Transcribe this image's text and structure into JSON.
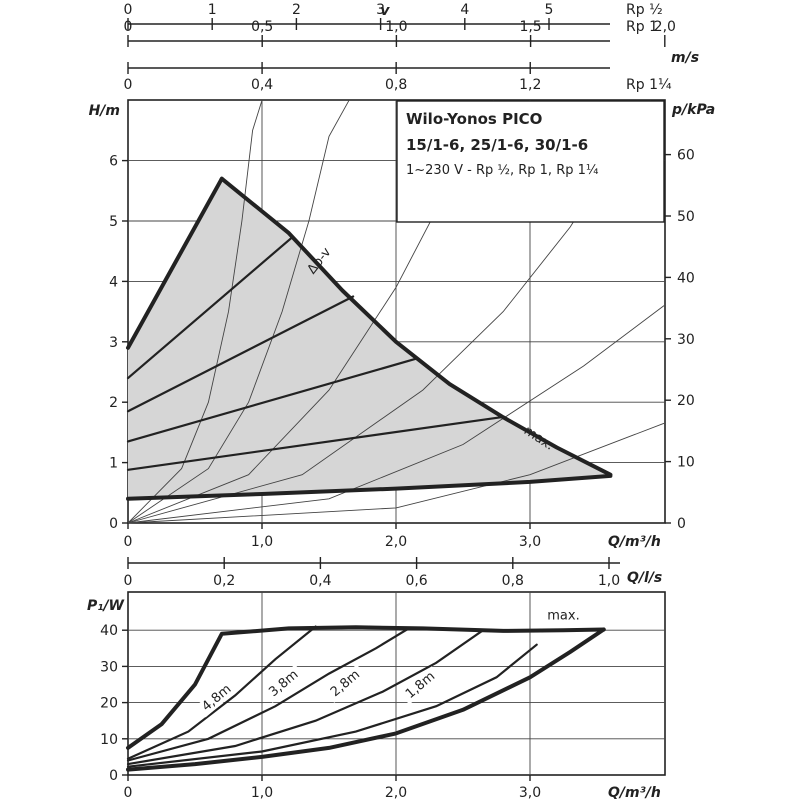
{
  "legend_box": {
    "title": "Wilo-Yonos PICO",
    "models": "15/1-6, 25/1-6, 30/1-6",
    "spec": "1~230 V - Rp ½, Rp 1, Rp 1¼"
  },
  "top_scales": {
    "v_label": "v",
    "ms_label": "m/s",
    "rows": [
      {
        "name": "Rp ½",
        "ticks": [
          0,
          1,
          2,
          3,
          4,
          5
        ],
        "tick_labels": [
          "0",
          "1",
          "2",
          "3",
          "4",
          "5"
        ]
      },
      {
        "name": "Rp 1",
        "ticks": [
          0,
          0.5,
          1.0,
          1.5,
          2.0
        ],
        "tick_labels": [
          "0",
          "0,5",
          "1,0",
          "1,5",
          "2,0"
        ]
      },
      {
        "name": "Rp 1¼",
        "ticks": [
          0,
          0.4,
          0.8,
          1.2
        ],
        "tick_labels": [
          "0",
          "0,4",
          "0,8",
          "1,2"
        ]
      }
    ]
  },
  "chart_data": [
    {
      "type": "line",
      "xlabel": "Q/m³/h",
      "ylabel": "H/m",
      "y2label": "p/kPa",
      "xlim": [
        0,
        4.0
      ],
      "ylim": [
        0,
        7
      ],
      "x_ticks": [
        0,
        1.0,
        2.0,
        3.0
      ],
      "x_tick_labels": [
        "0",
        "1,0",
        "2,0",
        "3,0"
      ],
      "y_ticks": [
        0,
        1,
        2,
        3,
        4,
        5,
        6
      ],
      "y_tick_labels": [
        "0",
        "1",
        "2",
        "3",
        "4",
        "5",
        "6"
      ],
      "y2_ticks": [
        0,
        10,
        20,
        30,
        40,
        50,
        60
      ],
      "y2_tick_labels": [
        "0",
        "10",
        "20",
        "30",
        "40",
        "50",
        "60"
      ],
      "q_ls_label": "Q/l/s",
      "q_ls_ticks": [
        0,
        0.2,
        0.4,
        0.6,
        0.8,
        1.0
      ],
      "q_ls_tick_labels": [
        "0",
        "0,2",
        "0,4",
        "0,6",
        "0,8",
        "1,0"
      ],
      "grid": true,
      "operating_range": {
        "upper_left": [
          [
            0,
            2.9
          ],
          [
            0.7,
            5.7
          ]
        ],
        "max_curve": [
          [
            0.7,
            5.7
          ],
          [
            1.2,
            4.8
          ],
          [
            1.6,
            3.85
          ],
          [
            2.0,
            3.0
          ],
          [
            2.4,
            2.3
          ],
          [
            2.8,
            1.75
          ],
          [
            3.2,
            1.25
          ],
          [
            3.6,
            0.8
          ]
        ],
        "min_curve": [
          [
            0,
            0.4
          ],
          [
            1.0,
            0.48
          ],
          [
            2.0,
            0.57
          ],
          [
            3.0,
            0.68
          ],
          [
            3.6,
            0.78
          ]
        ]
      },
      "dp_v_lines": [
        {
          "x": [
            0,
            1.22
          ],
          "y": [
            2.4,
            4.72
          ]
        },
        {
          "x": [
            0,
            1.68
          ],
          "y": [
            1.85,
            3.75
          ]
        },
        {
          "x": [
            0,
            2.15
          ],
          "y": [
            1.35,
            2.72
          ]
        },
        {
          "x": [
            0,
            2.78
          ],
          "y": [
            0.88,
            1.75
          ]
        }
      ],
      "system_curves": [
        {
          "points": [
            [
              0,
              0
            ],
            [
              0.4,
              0.9
            ],
            [
              0.6,
              2.0
            ],
            [
              0.75,
              3.5
            ],
            [
              0.85,
              5.0
            ],
            [
              0.93,
              6.5
            ],
            [
              1.0,
              7.0
            ]
          ]
        },
        {
          "points": [
            [
              0,
              0
            ],
            [
              0.6,
              0.9
            ],
            [
              0.9,
              2.0
            ],
            [
              1.15,
              3.5
            ],
            [
              1.35,
              5.0
            ],
            [
              1.5,
              6.4
            ],
            [
              1.65,
              7.0
            ]
          ]
        },
        {
          "points": [
            [
              0,
              0
            ],
            [
              0.9,
              0.8
            ],
            [
              1.5,
              2.2
            ],
            [
              2.0,
              3.9
            ],
            [
              2.4,
              5.6
            ],
            [
              2.73,
              7.0
            ]
          ]
        },
        {
          "points": [
            [
              0,
              0
            ],
            [
              1.3,
              0.8
            ],
            [
              2.2,
              2.2
            ],
            [
              2.8,
              3.5
            ],
            [
              3.3,
              4.9
            ],
            [
              3.9,
              7.0
            ]
          ]
        },
        {
          "points": [
            [
              0,
              0
            ],
            [
              1.5,
              0.4
            ],
            [
              2.5,
              1.3
            ],
            [
              3.4,
              2.6
            ],
            [
              4.0,
              3.6
            ]
          ]
        },
        {
          "points": [
            [
              0,
              0
            ],
            [
              2.0,
              0.25
            ],
            [
              3.0,
              0.8
            ],
            [
              4.0,
              1.65
            ]
          ]
        }
      ],
      "annotations": [
        {
          "text": "Δp-v",
          "x": 1.45,
          "y": 4.3
        },
        {
          "text": "max.",
          "x": 3.05,
          "y": 1.35
        }
      ]
    },
    {
      "type": "line",
      "xlabel": "Q/m³/h",
      "ylabel": "P₁/W",
      "xlim": [
        0,
        4.0
      ],
      "ylim": [
        0,
        48
      ],
      "x_ticks": [
        0,
        1.0,
        2.0,
        3.0
      ],
      "x_tick_labels": [
        "0",
        "1,0",
        "2,0",
        "3,0"
      ],
      "y_ticks": [
        0,
        10,
        20,
        30,
        40
      ],
      "y_tick_labels": [
        "0",
        "10",
        "20",
        "30",
        "40"
      ],
      "grid": true,
      "max_curve": [
        [
          0,
          7.5
        ],
        [
          0.25,
          14
        ],
        [
          0.5,
          25
        ],
        [
          0.7,
          39
        ],
        [
          1.2,
          40.5
        ],
        [
          1.7,
          40.8
        ],
        [
          2.2,
          40.5
        ],
        [
          2.8,
          39.8
        ],
        [
          3.25,
          40.0
        ],
        [
          3.55,
          40.2
        ]
      ],
      "min_curve": [
        [
          0,
          1.5
        ],
        [
          0.5,
          3.0
        ],
        [
          1.0,
          5.0
        ],
        [
          1.5,
          7.5
        ],
        [
          2.0,
          11.5
        ],
        [
          2.5,
          18.0
        ],
        [
          3.0,
          27.0
        ],
        [
          3.3,
          34.0
        ],
        [
          3.55,
          40.2
        ]
      ],
      "dp_v_lines": [
        {
          "label": "4,8m",
          "points": [
            [
              0,
              4.5
            ],
            [
              0.45,
              12
            ],
            [
              0.8,
              22
            ],
            [
              1.1,
              32
            ],
            [
              1.4,
              41
            ]
          ]
        },
        {
          "label": "3,8m",
          "points": [
            [
              0,
              4.0
            ],
            [
              0.6,
              10
            ],
            [
              1.1,
              19
            ],
            [
              1.5,
              28
            ],
            [
              1.85,
              35
            ],
            [
              2.1,
              40.6
            ]
          ]
        },
        {
          "label": "2,8m",
          "points": [
            [
              0,
              3.0
            ],
            [
              0.8,
              8
            ],
            [
              1.4,
              15
            ],
            [
              1.9,
              23
            ],
            [
              2.3,
              31
            ],
            [
              2.65,
              40.0
            ]
          ]
        },
        {
          "label": "1,8m",
          "points": [
            [
              0,
              2.3
            ],
            [
              1.0,
              6.5
            ],
            [
              1.7,
              12
            ],
            [
              2.3,
              19
            ],
            [
              2.75,
              27
            ],
            [
              3.05,
              36
            ]
          ]
        }
      ],
      "annotations": [
        {
          "text": "max.",
          "x": 3.25,
          "y": 43
        }
      ]
    }
  ]
}
